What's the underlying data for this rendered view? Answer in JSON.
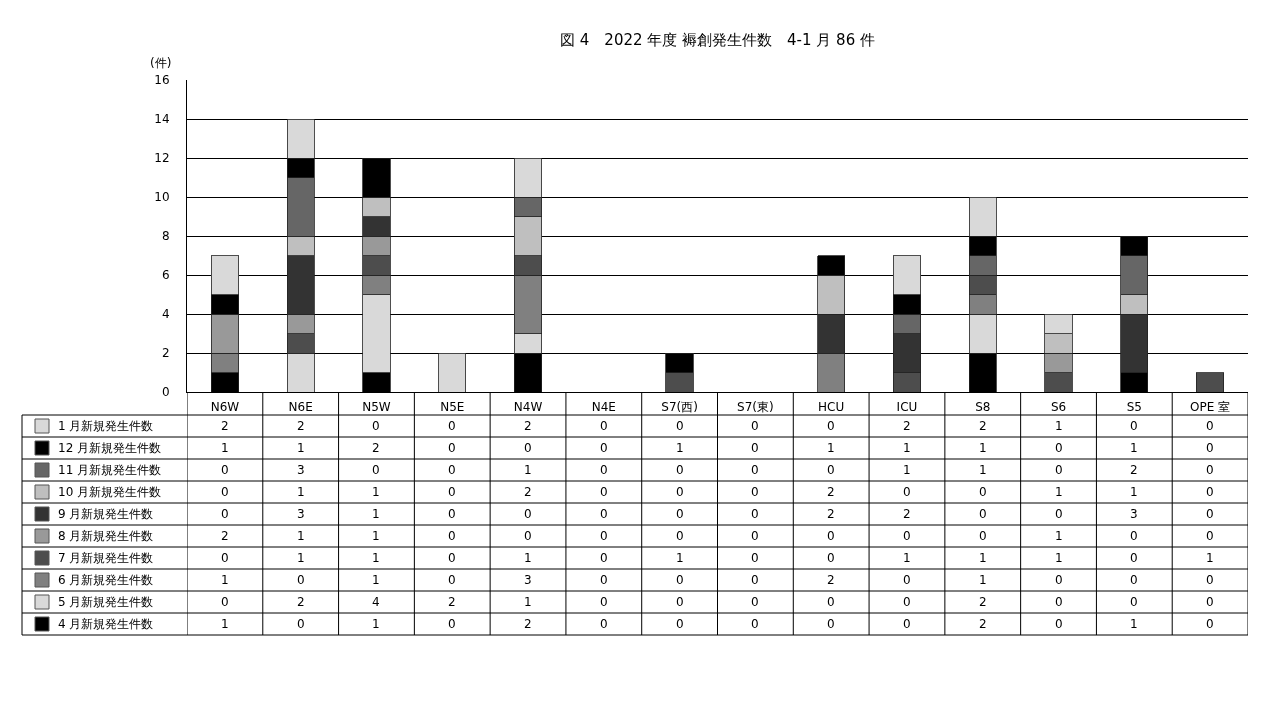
{
  "chart_data": {
    "type": "bar",
    "title": "図 4　2022 年度 褥創発生件数　4-1 月 86 件",
    "ylabel": "(件)",
    "categories": [
      "N6W",
      "N6E",
      "N5W",
      "N5E",
      "N4W",
      "N4E",
      "S7(西)",
      "S7(東)",
      "HCU",
      "ICU",
      "S8",
      "S6",
      "S5",
      "OPE 室"
    ],
    "stacked": true,
    "ylim": [
      0,
      16
    ],
    "yticks": [
      0,
      2,
      4,
      6,
      8,
      10,
      12,
      14,
      16
    ],
    "grid": "y",
    "legend": "bottom left",
    "data_labels": true,
    "series": [
      {
        "name": "4 月新規発生件数",
        "color": "#000000",
        "values": [
          1,
          0,
          1,
          0,
          2,
          0,
          0,
          0,
          0,
          0,
          2,
          0,
          1,
          0
        ]
      },
      {
        "name": "5 月新規発生件数",
        "color": "#d9d9d9",
        "values": [
          0,
          2,
          4,
          2,
          1,
          0,
          0,
          0,
          0,
          0,
          2,
          0,
          0,
          0
        ]
      },
      {
        "name": "6 月新規発生件数",
        "color": "#808080",
        "values": [
          1,
          0,
          1,
          0,
          3,
          0,
          0,
          0,
          2,
          0,
          1,
          0,
          0,
          0
        ]
      },
      {
        "name": "7 月新規発生件数",
        "color": "#4d4d4d",
        "values": [
          0,
          1,
          1,
          0,
          1,
          0,
          1,
          0,
          0,
          1,
          1,
          1,
          0,
          1
        ]
      },
      {
        "name": "8 月新規発生件数",
        "color": "#999999",
        "values": [
          2,
          1,
          1,
          0,
          0,
          0,
          0,
          0,
          0,
          0,
          0,
          1,
          0,
          0
        ]
      },
      {
        "name": "9 月新規発生件数",
        "color": "#333333",
        "values": [
          0,
          3,
          1,
          0,
          0,
          0,
          0,
          0,
          2,
          2,
          0,
          0,
          3,
          0
        ]
      },
      {
        "name": "10 月新規発生件数",
        "color": "#bfbfbf",
        "values": [
          0,
          1,
          1,
          0,
          2,
          0,
          0,
          0,
          2,
          0,
          0,
          1,
          1,
          0
        ]
      },
      {
        "name": "11 月新規発生件数",
        "color": "#666666",
        "values": [
          0,
          3,
          0,
          0,
          1,
          0,
          0,
          0,
          0,
          1,
          1,
          0,
          2,
          0
        ]
      },
      {
        "name": "12 月新規発生件数",
        "color": "#000000",
        "values": [
          1,
          1,
          2,
          0,
          0,
          0,
          1,
          0,
          1,
          1,
          1,
          0,
          1,
          0
        ]
      },
      {
        "name": "1 月新規発生件数",
        "color": "#d9d9d9",
        "values": [
          2,
          2,
          0,
          0,
          2,
          0,
          0,
          0,
          0,
          2,
          2,
          1,
          0,
          0
        ]
      }
    ]
  }
}
